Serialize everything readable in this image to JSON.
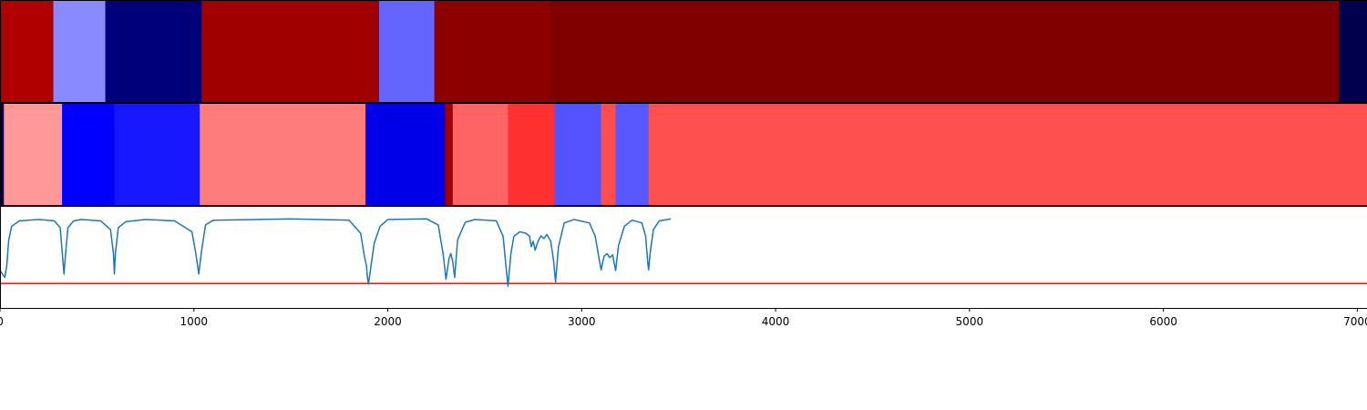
{
  "chart_data": {
    "type": "heatmap",
    "x_range": [
      0,
      7050
    ],
    "x_ticks": [
      {
        "value": 0,
        "label": "0"
      },
      {
        "value": 1000,
        "label": "1000"
      },
      {
        "value": 2000,
        "label": "2000"
      },
      {
        "value": 3000,
        "label": "3000"
      },
      {
        "value": 4000,
        "label": "4000"
      },
      {
        "value": 5000,
        "label": "5000"
      },
      {
        "value": 6000,
        "label": "6000"
      },
      {
        "value": 7000,
        "label": "7000"
      }
    ],
    "rows": [
      {
        "segments": [
          {
            "start": 0,
            "end": 275,
            "color": "#b00000"
          },
          {
            "start": 275,
            "end": 543,
            "color": "#8a8aff"
          },
          {
            "start": 543,
            "end": 1040,
            "color": "#00007a"
          },
          {
            "start": 1040,
            "end": 1955,
            "color": "#a00000"
          },
          {
            "start": 1955,
            "end": 2240,
            "color": "#6464ff"
          },
          {
            "start": 2240,
            "end": 2840,
            "color": "#8c0000"
          },
          {
            "start": 2840,
            "end": 6905,
            "color": "#800000"
          },
          {
            "start": 6905,
            "end": 7050,
            "color": "#00004c"
          }
        ]
      },
      {
        "segments": [
          {
            "start": 0,
            "end": 20,
            "color": "#000060"
          },
          {
            "start": 20,
            "end": 320,
            "color": "#ff9898"
          },
          {
            "start": 320,
            "end": 590,
            "color": "#0000ff"
          },
          {
            "start": 590,
            "end": 1030,
            "color": "#1818ff"
          },
          {
            "start": 1030,
            "end": 1885,
            "color": "#ff7c7c"
          },
          {
            "start": 1885,
            "end": 2295,
            "color": "#0000e8"
          },
          {
            "start": 2295,
            "end": 2335,
            "color": "#a00000"
          },
          {
            "start": 2335,
            "end": 2620,
            "color": "#ff6464"
          },
          {
            "start": 2620,
            "end": 2860,
            "color": "#ff3030"
          },
          {
            "start": 2860,
            "end": 3100,
            "color": "#5454ff"
          },
          {
            "start": 3100,
            "end": 3175,
            "color": "#ff4c4c"
          },
          {
            "start": 3175,
            "end": 3345,
            "color": "#5858ff"
          },
          {
            "start": 3345,
            "end": 7050,
            "color": "#ff5050"
          }
        ]
      }
    ],
    "line_series": {
      "color": "#1f77b4",
      "y_range": [
        0,
        1.5
      ],
      "points": [
        [
          0,
          0.55
        ],
        [
          25,
          0.45
        ],
        [
          35,
          0.62
        ],
        [
          45,
          1.0
        ],
        [
          60,
          1.2
        ],
        [
          100,
          1.28
        ],
        [
          200,
          1.3
        ],
        [
          280,
          1.28
        ],
        [
          310,
          1.18
        ],
        [
          320,
          0.85
        ],
        [
          330,
          0.5
        ],
        [
          340,
          0.85
        ],
        [
          350,
          1.18
        ],
        [
          380,
          1.28
        ],
        [
          420,
          1.3
        ],
        [
          520,
          1.28
        ],
        [
          570,
          1.15
        ],
        [
          585,
          0.8
        ],
        [
          590,
          0.5
        ],
        [
          595,
          0.8
        ],
        [
          610,
          1.18
        ],
        [
          650,
          1.27
        ],
        [
          750,
          1.3
        ],
        [
          900,
          1.28
        ],
        [
          990,
          1.12
        ],
        [
          1010,
          0.8
        ],
        [
          1025,
          0.5
        ],
        [
          1040,
          0.85
        ],
        [
          1060,
          1.22
        ],
        [
          1100,
          1.29
        ],
        [
          1500,
          1.31
        ],
        [
          1800,
          1.29
        ],
        [
          1860,
          1.1
        ],
        [
          1880,
          0.75
        ],
        [
          1890,
          0.62
        ],
        [
          1895,
          0.45
        ],
        [
          1900,
          0.35
        ],
        [
          1910,
          0.55
        ],
        [
          1930,
          0.95
        ],
        [
          1960,
          1.2
        ],
        [
          2000,
          1.3
        ],
        [
          2200,
          1.31
        ],
        [
          2260,
          1.22
        ],
        [
          2285,
          0.8
        ],
        [
          2300,
          0.42
        ],
        [
          2315,
          0.72
        ],
        [
          2325,
          0.8
        ],
        [
          2335,
          0.68
        ],
        [
          2345,
          0.45
        ],
        [
          2360,
          1.0
        ],
        [
          2400,
          1.26
        ],
        [
          2450,
          1.3
        ],
        [
          2560,
          1.28
        ],
        [
          2595,
          1.05
        ],
        [
          2610,
          0.6
        ],
        [
          2620,
          0.32
        ],
        [
          2635,
          0.8
        ],
        [
          2650,
          1.05
        ],
        [
          2680,
          1.12
        ],
        [
          2710,
          1.1
        ],
        [
          2730,
          1.06
        ],
        [
          2740,
          0.9
        ],
        [
          2750,
          0.98
        ],
        [
          2760,
          0.85
        ],
        [
          2775,
          0.98
        ],
        [
          2790,
          1.06
        ],
        [
          2805,
          1.02
        ],
        [
          2820,
          1.08
        ],
        [
          2840,
          0.98
        ],
        [
          2855,
          0.7
        ],
        [
          2865,
          0.38
        ],
        [
          2880,
          0.9
        ],
        [
          2910,
          1.25
        ],
        [
          2960,
          1.3
        ],
        [
          3040,
          1.25
        ],
        [
          3070,
          1.05
        ],
        [
          3090,
          0.72
        ],
        [
          3100,
          0.56
        ],
        [
          3115,
          0.76
        ],
        [
          3130,
          0.8
        ],
        [
          3145,
          0.74
        ],
        [
          3160,
          0.78
        ],
        [
          3175,
          0.55
        ],
        [
          3190,
          0.92
        ],
        [
          3220,
          1.2
        ],
        [
          3260,
          1.29
        ],
        [
          3310,
          1.25
        ],
        [
          3330,
          1.05
        ],
        [
          3340,
          0.7
        ],
        [
          3345,
          0.56
        ],
        [
          3355,
          0.85
        ],
        [
          3370,
          1.15
        ],
        [
          3400,
          1.28
        ],
        [
          3460,
          1.31
        ]
      ]
    },
    "threshold": {
      "value": 0.36,
      "color": "#ff0000"
    }
  }
}
